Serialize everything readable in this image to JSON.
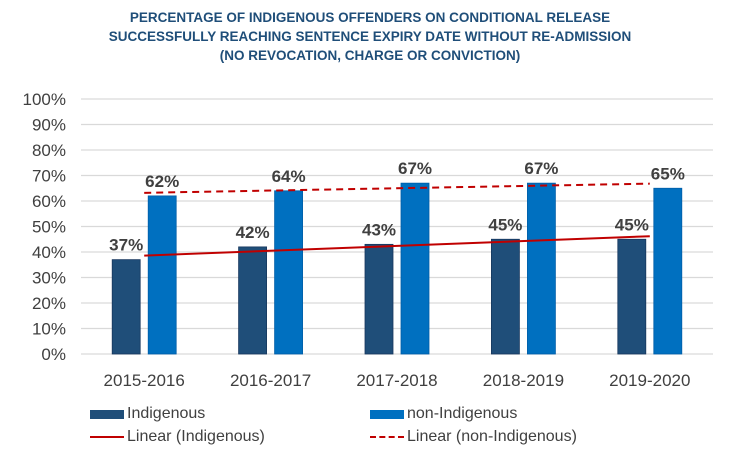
{
  "chart_data": {
    "type": "bar",
    "title": [
      "PERCENTAGE OF INDIGENOUS OFFENDERS ON CONDITIONAL RELEASE",
      "SUCCESSFULLY REACHING SENTENCE EXPIRY DATE WITHOUT RE-ADMISSION",
      "(NO REVOCATION, CHARGE OR CONVICTION)"
    ],
    "xlabel": "",
    "ylabel": "",
    "categories": [
      "2015-2016",
      "2016-2017",
      "2017-2018",
      "2018-2019",
      "2019-2020"
    ],
    "series": [
      {
        "name": "Indigenous",
        "values": [
          37,
          42,
          43,
          45,
          45
        ],
        "labels": [
          "37%",
          "42%",
          "43%",
          "45%",
          "45%"
        ],
        "color": "#1f4e79"
      },
      {
        "name": "non-Indigenous",
        "values": [
          62,
          64,
          67,
          67,
          65
        ],
        "labels": [
          "62%",
          "64%",
          "67%",
          "67%",
          "65%"
        ],
        "color": "#0070c0"
      }
    ],
    "trendlines": [
      {
        "name": "Linear (Indigenous)",
        "series": "Indigenous",
        "type": "linear",
        "style": "solid",
        "color": "#c00000"
      },
      {
        "name": "Linear (non-Indigenous)",
        "series": "non-Indigenous",
        "type": "linear",
        "style": "dashed",
        "color": "#c00000"
      }
    ],
    "ylim": [
      0,
      100
    ],
    "yticks": [
      "0%",
      "10%",
      "20%",
      "30%",
      "40%",
      "50%",
      "60%",
      "70%",
      "80%",
      "90%",
      "100%"
    ],
    "grid": true,
    "legend_position": "bottom"
  },
  "colors": {
    "title": "#1f4e79",
    "grid": "#d9d9d9",
    "axis_text": "#404040",
    "label_text": "#404040"
  }
}
